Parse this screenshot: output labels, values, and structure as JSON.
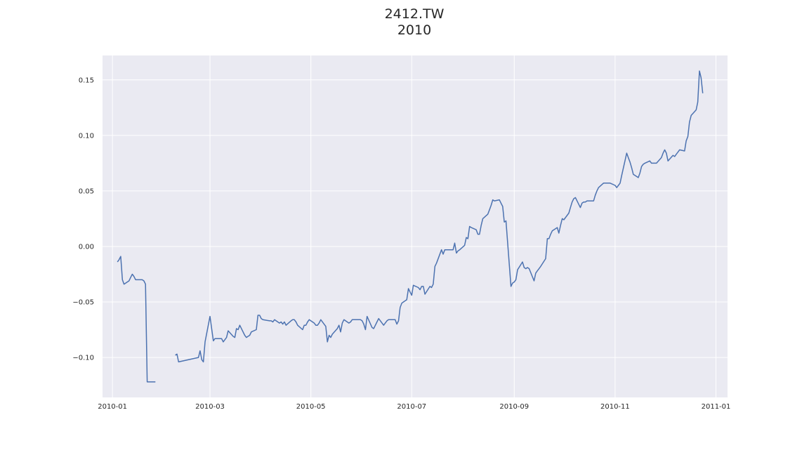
{
  "header": {
    "title": "2412.TW",
    "subtitle": "2010"
  },
  "chart_data": {
    "type": "line",
    "title": "2412.TW",
    "subtitle": "2010",
    "xlabel": "",
    "ylabel": "",
    "grid": true,
    "style": {
      "background": "#eaeaf2",
      "grid_color": "#ffffff",
      "line_color": "#4c72b0"
    },
    "xlim": [
      "2009-12-26",
      "2011-01-08"
    ],
    "ylim": [
      -0.136,
      0.172
    ],
    "x_tick_labels": [
      "2010-01",
      "2010-03",
      "2010-05",
      "2010-07",
      "2010-09",
      "2010-11",
      "2011-01"
    ],
    "x_ticks": [
      "2010-01-01",
      "2010-03-01",
      "2010-05-01",
      "2010-07-01",
      "2010-09-01",
      "2010-11-01",
      "2011-01-01"
    ],
    "y_ticks": [
      -0.1,
      -0.05,
      0.0,
      0.05,
      0.1,
      0.15
    ],
    "y_tick_labels": [
      "−0.10",
      "−0.05",
      "0.00",
      "0.05",
      "0.10",
      "0.15"
    ],
    "series": [
      {
        "segments": [
          [
            [
              "2010-01-04",
              -0.014
            ],
            [
              "2010-01-05",
              -0.012
            ],
            [
              "2010-01-06",
              -0.009
            ],
            [
              "2010-01-07",
              -0.03
            ],
            [
              "2010-01-08",
              -0.034
            ],
            [
              "2010-01-11",
              -0.031
            ],
            [
              "2010-01-12",
              -0.028
            ],
            [
              "2010-01-13",
              -0.025
            ],
            [
              "2010-01-14",
              -0.027
            ],
            [
              "2010-01-15",
              -0.03
            ],
            [
              "2010-01-18",
              -0.03
            ],
            [
              "2010-01-19",
              -0.03
            ],
            [
              "2010-01-20",
              -0.031
            ],
            [
              "2010-01-21",
              -0.034
            ],
            [
              "2010-01-22",
              -0.122
            ],
            [
              "2010-01-25",
              -0.122
            ],
            [
              "2010-01-26",
              -0.122
            ],
            [
              "2010-01-27",
              -0.122
            ]
          ],
          [
            [
              "2010-02-08",
              -0.098
            ],
            [
              "2010-02-09",
              -0.097
            ],
            [
              "2010-02-10",
              -0.104
            ],
            [
              "2010-02-22",
              -0.1
            ],
            [
              "2010-02-23",
              -0.094
            ],
            [
              "2010-02-24",
              -0.102
            ],
            [
              "2010-02-25",
              -0.104
            ],
            [
              "2010-02-26",
              -0.086
            ],
            [
              "2010-03-01",
              -0.063
            ],
            [
              "2010-03-02",
              -0.074
            ],
            [
              "2010-03-03",
              -0.085
            ],
            [
              "2010-03-04",
              -0.083
            ],
            [
              "2010-03-05",
              -0.083
            ],
            [
              "2010-03-08",
              -0.083
            ],
            [
              "2010-03-09",
              -0.086
            ],
            [
              "2010-03-10",
              -0.084
            ],
            [
              "2010-03-11",
              -0.082
            ],
            [
              "2010-03-12",
              -0.076
            ],
            [
              "2010-03-15",
              -0.081
            ],
            [
              "2010-03-16",
              -0.082
            ],
            [
              "2010-03-17",
              -0.074
            ],
            [
              "2010-03-18",
              -0.075
            ],
            [
              "2010-03-19",
              -0.071
            ],
            [
              "2010-03-22",
              -0.08
            ],
            [
              "2010-03-23",
              -0.082
            ],
            [
              "2010-03-24",
              -0.081
            ],
            [
              "2010-03-25",
              -0.08
            ],
            [
              "2010-03-26",
              -0.077
            ],
            [
              "2010-03-29",
              -0.075
            ],
            [
              "2010-03-30",
              -0.062
            ],
            [
              "2010-03-31",
              -0.062
            ],
            [
              "2010-04-01",
              -0.065
            ],
            [
              "2010-04-02",
              -0.066
            ],
            [
              "2010-04-06",
              -0.067
            ],
            [
              "2010-04-07",
              -0.067
            ],
            [
              "2010-04-08",
              -0.068
            ],
            [
              "2010-04-09",
              -0.066
            ],
            [
              "2010-04-12",
              -0.069
            ],
            [
              "2010-04-13",
              -0.068
            ],
            [
              "2010-04-14",
              -0.07
            ],
            [
              "2010-04-15",
              -0.068
            ],
            [
              "2010-04-16",
              -0.071
            ],
            [
              "2010-04-19",
              -0.067
            ],
            [
              "2010-04-20",
              -0.066
            ],
            [
              "2010-04-21",
              -0.066
            ],
            [
              "2010-04-22",
              -0.068
            ],
            [
              "2010-04-23",
              -0.071
            ],
            [
              "2010-04-26",
              -0.075
            ],
            [
              "2010-04-27",
              -0.071
            ],
            [
              "2010-04-28",
              -0.071
            ],
            [
              "2010-04-29",
              -0.068
            ],
            [
              "2010-04-30",
              -0.066
            ],
            [
              "2010-05-03",
              -0.069
            ],
            [
              "2010-05-04",
              -0.071
            ],
            [
              "2010-05-05",
              -0.071
            ],
            [
              "2010-05-06",
              -0.069
            ],
            [
              "2010-05-07",
              -0.066
            ],
            [
              "2010-05-10",
              -0.072
            ],
            [
              "2010-05-11",
              -0.086
            ],
            [
              "2010-05-12",
              -0.08
            ],
            [
              "2010-05-13",
              -0.082
            ],
            [
              "2010-05-14",
              -0.079
            ],
            [
              "2010-05-17",
              -0.074
            ],
            [
              "2010-05-18",
              -0.071
            ],
            [
              "2010-05-19",
              -0.077
            ],
            [
              "2010-05-20",
              -0.069
            ],
            [
              "2010-05-21",
              -0.066
            ],
            [
              "2010-05-24",
              -0.069
            ],
            [
              "2010-05-25",
              -0.068
            ],
            [
              "2010-05-26",
              -0.066
            ],
            [
              "2010-05-27",
              -0.066
            ],
            [
              "2010-05-28",
              -0.066
            ],
            [
              "2010-05-31",
              -0.066
            ],
            [
              "2010-06-01",
              -0.067
            ],
            [
              "2010-06-02",
              -0.07
            ],
            [
              "2010-06-03",
              -0.075
            ],
            [
              "2010-06-04",
              -0.063
            ],
            [
              "2010-06-07",
              -0.073
            ],
            [
              "2010-06-08",
              -0.074
            ],
            [
              "2010-06-09",
              -0.071
            ],
            [
              "2010-06-10",
              -0.068
            ],
            [
              "2010-06-11",
              -0.065
            ],
            [
              "2010-06-14",
              -0.071
            ],
            [
              "2010-06-15",
              -0.069
            ],
            [
              "2010-06-16",
              -0.067
            ],
            [
              "2010-06-17",
              -0.066
            ],
            [
              "2010-06-18",
              -0.066
            ],
            [
              "2010-06-21",
              -0.066
            ],
            [
              "2010-06-22",
              -0.07
            ],
            [
              "2010-06-23",
              -0.067
            ],
            [
              "2010-06-24",
              -0.055
            ],
            [
              "2010-06-25",
              -0.051
            ],
            [
              "2010-06-28",
              -0.048
            ],
            [
              "2010-06-29",
              -0.038
            ],
            [
              "2010-06-30",
              -0.041
            ],
            [
              "2010-07-01",
              -0.044
            ],
            [
              "2010-07-02",
              -0.035
            ],
            [
              "2010-07-05",
              -0.037
            ],
            [
              "2010-07-06",
              -0.039
            ],
            [
              "2010-07-07",
              -0.036
            ],
            [
              "2010-07-08",
              -0.036
            ],
            [
              "2010-07-09",
              -0.043
            ],
            [
              "2010-07-12",
              -0.036
            ],
            [
              "2010-07-13",
              -0.037
            ],
            [
              "2010-07-14",
              -0.034
            ],
            [
              "2010-07-15",
              -0.018
            ],
            [
              "2010-07-16",
              -0.015
            ],
            [
              "2010-07-19",
              -0.003
            ],
            [
              "2010-07-20",
              -0.007
            ],
            [
              "2010-07-21",
              -0.003
            ],
            [
              "2010-07-22",
              -0.003
            ],
            [
              "2010-07-23",
              -0.003
            ],
            [
              "2010-07-26",
              -0.003
            ],
            [
              "2010-07-27",
              0.003
            ],
            [
              "2010-07-28",
              -0.006
            ],
            [
              "2010-07-29",
              -0.004
            ],
            [
              "2010-07-30",
              -0.003
            ],
            [
              "2010-08-02",
              0.001
            ],
            [
              "2010-08-03",
              0.008
            ],
            [
              "2010-08-04",
              0.007
            ],
            [
              "2010-08-05",
              0.018
            ],
            [
              "2010-08-06",
              0.017
            ],
            [
              "2010-08-09",
              0.015
            ],
            [
              "2010-08-10",
              0.011
            ],
            [
              "2010-08-11",
              0.011
            ],
            [
              "2010-08-12",
              0.019
            ],
            [
              "2010-08-13",
              0.025
            ],
            [
              "2010-08-16",
              0.029
            ],
            [
              "2010-08-17",
              0.033
            ],
            [
              "2010-08-18",
              0.037
            ],
            [
              "2010-08-19",
              0.042
            ],
            [
              "2010-08-20",
              0.041
            ],
            [
              "2010-08-23",
              0.042
            ],
            [
              "2010-08-24",
              0.039
            ],
            [
              "2010-08-25",
              0.036
            ],
            [
              "2010-08-26",
              0.022
            ],
            [
              "2010-08-27",
              0.023
            ],
            [
              "2010-08-30",
              -0.036
            ],
            [
              "2010-08-31",
              -0.033
            ],
            [
              "2010-09-01",
              -0.032
            ],
            [
              "2010-09-02",
              -0.03
            ],
            [
              "2010-09-03",
              -0.021
            ],
            [
              "2010-09-06",
              -0.014
            ],
            [
              "2010-09-07",
              -0.019
            ],
            [
              "2010-09-08",
              -0.02
            ],
            [
              "2010-09-09",
              -0.019
            ],
            [
              "2010-09-10",
              -0.02
            ],
            [
              "2010-09-13",
              -0.031
            ],
            [
              "2010-09-14",
              -0.024
            ],
            [
              "2010-09-15",
              -0.022
            ],
            [
              "2010-09-16",
              -0.02
            ],
            [
              "2010-09-17",
              -0.018
            ],
            [
              "2010-09-20",
              -0.011
            ],
            [
              "2010-09-21",
              0.007
            ],
            [
              "2010-09-22",
              0.007
            ],
            [
              "2010-09-23",
              0.011
            ],
            [
              "2010-09-24",
              0.014
            ],
            [
              "2010-09-27",
              0.017
            ],
            [
              "2010-09-28",
              0.012
            ],
            [
              "2010-09-29",
              0.019
            ],
            [
              "2010-09-30",
              0.025
            ],
            [
              "2010-10-01",
              0.024
            ],
            [
              "2010-10-04",
              0.03
            ],
            [
              "2010-10-05",
              0.035
            ],
            [
              "2010-10-06",
              0.04
            ],
            [
              "2010-10-07",
              0.043
            ],
            [
              "2010-10-08",
              0.044
            ],
            [
              "2010-10-11",
              0.035
            ],
            [
              "2010-10-12",
              0.039
            ],
            [
              "2010-10-13",
              0.04
            ],
            [
              "2010-10-14",
              0.04
            ],
            [
              "2010-10-15",
              0.041
            ],
            [
              "2010-10-18",
              0.041
            ],
            [
              "2010-10-19",
              0.041
            ],
            [
              "2010-10-20",
              0.046
            ],
            [
              "2010-10-21",
              0.05
            ],
            [
              "2010-10-22",
              0.053
            ],
            [
              "2010-10-25",
              0.057
            ],
            [
              "2010-10-26",
              0.057
            ],
            [
              "2010-10-27",
              0.057
            ],
            [
              "2010-10-28",
              0.057
            ],
            [
              "2010-10-29",
              0.057
            ],
            [
              "2010-11-01",
              0.055
            ],
            [
              "2010-11-02",
              0.053
            ],
            [
              "2010-11-03",
              0.055
            ],
            [
              "2010-11-04",
              0.057
            ],
            [
              "2010-11-05",
              0.064
            ],
            [
              "2010-11-08",
              0.084
            ],
            [
              "2010-11-09",
              0.08
            ],
            [
              "2010-11-10",
              0.076
            ],
            [
              "2010-11-11",
              0.071
            ],
            [
              "2010-11-12",
              0.065
            ],
            [
              "2010-11-15",
              0.062
            ],
            [
              "2010-11-16",
              0.066
            ],
            [
              "2010-11-17",
              0.072
            ],
            [
              "2010-11-18",
              0.074
            ],
            [
              "2010-11-19",
              0.075
            ],
            [
              "2010-11-22",
              0.077
            ],
            [
              "2010-11-23",
              0.075
            ],
            [
              "2010-11-24",
              0.075
            ],
            [
              "2010-11-25",
              0.075
            ],
            [
              "2010-11-26",
              0.075
            ],
            [
              "2010-11-29",
              0.08
            ],
            [
              "2010-11-30",
              0.084
            ],
            [
              "2010-12-01",
              0.087
            ],
            [
              "2010-12-02",
              0.084
            ],
            [
              "2010-12-03",
              0.077
            ],
            [
              "2010-12-06",
              0.082
            ],
            [
              "2010-12-07",
              0.081
            ],
            [
              "2010-12-08",
              0.083
            ],
            [
              "2010-12-09",
              0.085
            ],
            [
              "2010-12-10",
              0.087
            ],
            [
              "2010-12-13",
              0.086
            ],
            [
              "2010-12-14",
              0.095
            ],
            [
              "2010-12-15",
              0.099
            ],
            [
              "2010-12-16",
              0.112
            ],
            [
              "2010-12-17",
              0.118
            ],
            [
              "2010-12-20",
              0.123
            ],
            [
              "2010-12-21",
              0.13
            ],
            [
              "2010-12-22",
              0.158
            ],
            [
              "2010-12-23",
              0.152
            ],
            [
              "2010-12-24",
              0.138
            ]
          ]
        ]
      }
    ]
  }
}
